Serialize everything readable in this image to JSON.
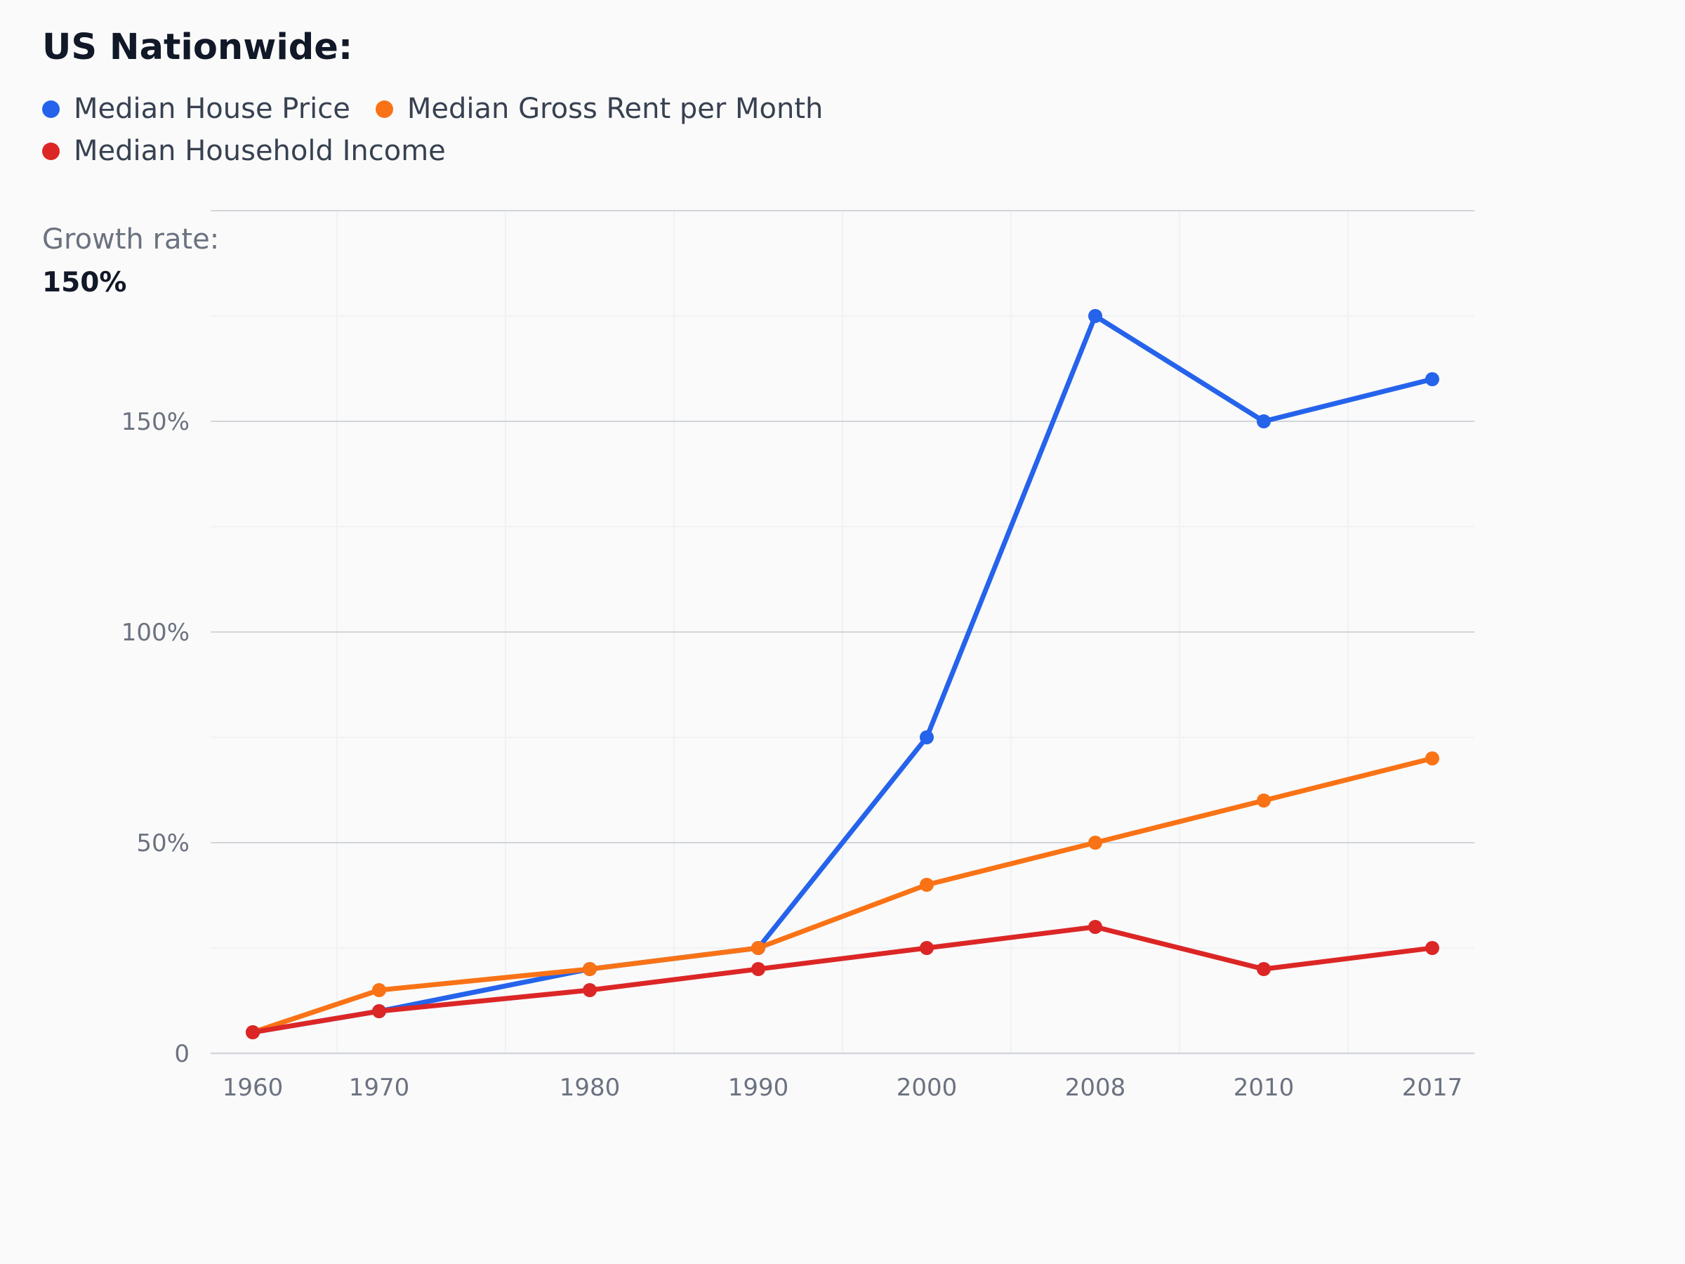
{
  "colors": {
    "house": "#2563eb",
    "rent": "#f97316",
    "income": "#dc2626",
    "grid": "#d1d5db",
    "minor_grid": "#f1f2f4"
  },
  "chart_data": {
    "type": "line",
    "title": "US Nationwide:",
    "subtitle_label": "Growth rate:",
    "subtitle_value": "150%",
    "categories": [
      "1960",
      "1970",
      "1980",
      "1990",
      "2000",
      "2008",
      "2010",
      "2017"
    ],
    "x": [
      1960,
      1967.5,
      1980,
      1990,
      2000,
      2010,
      2020,
      2030
    ],
    "xlim": [
      1957.5,
      2032.5
    ],
    "ylim": [
      0,
      200
    ],
    "yticks": [
      0,
      50,
      100,
      150
    ],
    "ytick_labels": [
      "0",
      "50%",
      "100%",
      "150%"
    ],
    "legend_position": "top-left",
    "grid": true,
    "series": [
      {
        "name": "Median House Price",
        "color": "#2563eb",
        "values": [
          5,
          10,
          20,
          25,
          75,
          175,
          150,
          160
        ]
      },
      {
        "name": "Median Gross Rent per Month",
        "color": "#f97316",
        "values": [
          5,
          15,
          20,
          25,
          40,
          50,
          60,
          70
        ]
      },
      {
        "name": "Median Household Income",
        "color": "#dc2626",
        "values": [
          5,
          10,
          15,
          20,
          25,
          30,
          20,
          25
        ]
      }
    ]
  }
}
